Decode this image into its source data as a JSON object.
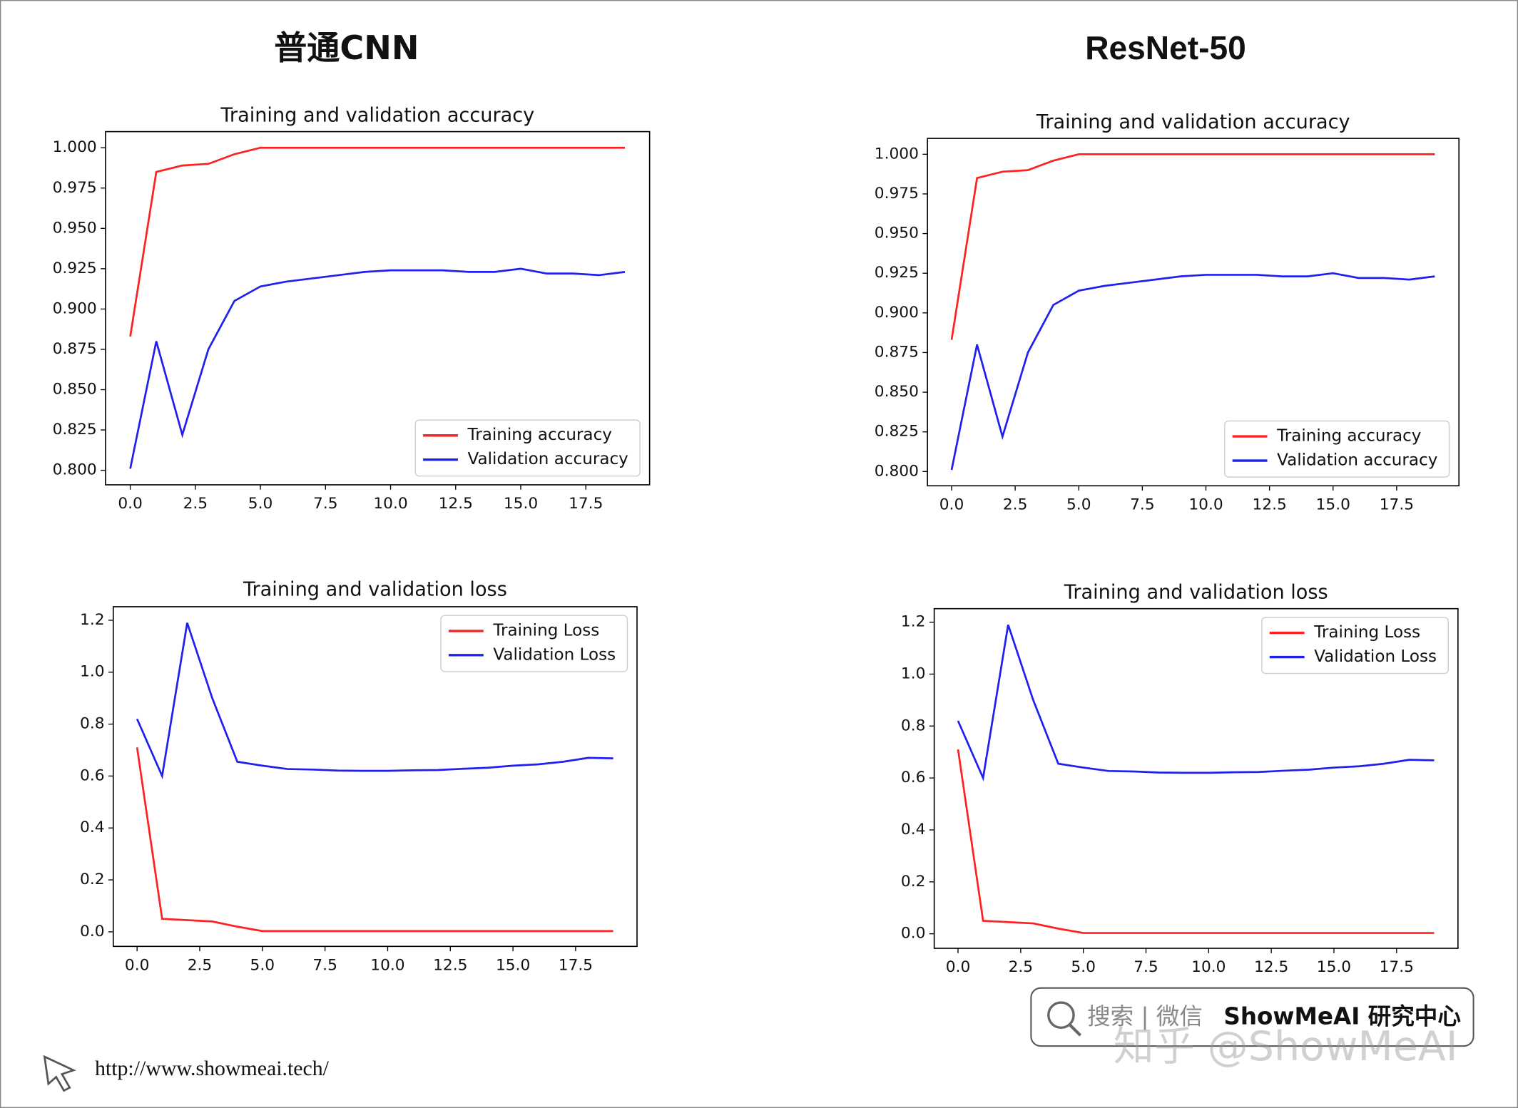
{
  "columns": [
    "普通CNN",
    "ResNet-50"
  ],
  "footer": {
    "url": "http://www.showmeai.tech/",
    "search": "搜索 | 微信",
    "brand": "ShowMeAI 研究中心",
    "watermark": "知乎 @ShowMeAI"
  },
  "chart_data": [
    {
      "type": "line",
      "title": "Training and validation accuracy",
      "x": [
        0,
        1,
        2,
        3,
        4,
        5,
        6,
        7,
        8,
        9,
        10,
        11,
        12,
        13,
        14,
        15,
        16,
        17,
        18,
        19
      ],
      "series": [
        {
          "name": "Training accuracy",
          "color": "#ff2020",
          "values": [
            0.883,
            0.985,
            0.989,
            0.99,
            0.996,
            1.0,
            1.0,
            1.0,
            1.0,
            1.0,
            1.0,
            1.0,
            1.0,
            1.0,
            1.0,
            1.0,
            1.0,
            1.0,
            1.0,
            1.0
          ]
        },
        {
          "name": "Validation accuracy",
          "color": "#2020ee",
          "values": [
            0.801,
            0.88,
            0.822,
            0.875,
            0.905,
            0.914,
            0.917,
            0.919,
            0.921,
            0.923,
            0.924,
            0.924,
            0.924,
            0.923,
            0.923,
            0.925,
            0.922,
            0.922,
            0.921,
            0.923
          ]
        }
      ],
      "xlim": [
        -0.95,
        19.95
      ],
      "ylim": [
        0.791,
        1.01
      ],
      "xticks": [
        {
          "value": 0,
          "label": "0.0"
        },
        2.5,
        {
          "value": 5,
          "label": "5.0"
        },
        7.5,
        {
          "value": 10,
          "label": "10.0"
        },
        12.5,
        {
          "value": 15,
          "label": "15.0"
        },
        17.5
      ],
      "yticks": [
        {
          "value": 0.8,
          "label": "0.800"
        },
        0.825,
        {
          "value": 0.85,
          "label": "0.850"
        },
        0.875,
        {
          "value": 0.9,
          "label": "0.900"
        },
        0.925,
        {
          "value": 0.95,
          "label": "0.950"
        },
        0.975,
        {
          "value": 1,
          "label": "1.000"
        }
      ],
      "legend": "lower right"
    },
    {
      "type": "line",
      "title": "Training and validation loss",
      "x": [
        0,
        1,
        2,
        3,
        4,
        5,
        6,
        7,
        8,
        9,
        10,
        11,
        12,
        13,
        14,
        15,
        16,
        17,
        18,
        19
      ],
      "series": [
        {
          "name": "Training Loss",
          "color": "#ff2020",
          "values": [
            0.71,
            0.05,
            0.045,
            0.04,
            0.02,
            0.003,
            0.003,
            0.003,
            0.003,
            0.003,
            0.003,
            0.003,
            0.003,
            0.003,
            0.003,
            0.003,
            0.003,
            0.003,
            0.003,
            0.003
          ]
        },
        {
          "name": "Validation Loss",
          "color": "#2020ee",
          "values": [
            0.82,
            0.6,
            1.19,
            0.9,
            0.655,
            0.64,
            0.627,
            0.625,
            0.621,
            0.62,
            0.62,
            0.622,
            0.623,
            0.628,
            0.632,
            0.64,
            0.645,
            0.655,
            0.67,
            0.668
          ]
        }
      ],
      "xlim": [
        -0.95,
        19.95
      ],
      "ylim": [
        -0.056,
        1.252
      ],
      "xticks": [
        {
          "value": 0,
          "label": "0.0"
        },
        2.5,
        {
          "value": 5,
          "label": "5.0"
        },
        7.5,
        {
          "value": 10,
          "label": "10.0"
        },
        12.5,
        {
          "value": 15,
          "label": "15.0"
        },
        17.5
      ],
      "yticks": [
        {
          "value": 0,
          "label": "0.0"
        },
        0.2,
        0.4,
        0.6,
        0.8,
        {
          "value": 1,
          "label": "1.0"
        },
        1.2
      ],
      "legend": "upper right"
    },
    {
      "type": "line",
      "title": "Training and validation accuracy",
      "x": [
        0,
        1,
        2,
        3,
        4,
        5,
        6,
        7,
        8,
        9,
        10,
        11,
        12,
        13,
        14,
        15,
        16,
        17,
        18,
        19
      ],
      "series": [
        {
          "name": "Training accuracy",
          "color": "#ff2020",
          "values": [
            0.883,
            0.985,
            0.989,
            0.99,
            0.996,
            1.0,
            1.0,
            1.0,
            1.0,
            1.0,
            1.0,
            1.0,
            1.0,
            1.0,
            1.0,
            1.0,
            1.0,
            1.0,
            1.0,
            1.0
          ]
        },
        {
          "name": "Validation accuracy",
          "color": "#2020ee",
          "values": [
            0.801,
            0.88,
            0.822,
            0.875,
            0.905,
            0.914,
            0.917,
            0.919,
            0.921,
            0.923,
            0.924,
            0.924,
            0.924,
            0.923,
            0.923,
            0.925,
            0.922,
            0.922,
            0.921,
            0.923
          ]
        }
      ],
      "xlim": [
        -0.95,
        19.95
      ],
      "ylim": [
        0.791,
        1.01
      ],
      "xticks": [
        {
          "value": 0,
          "label": "0.0"
        },
        2.5,
        {
          "value": 5,
          "label": "5.0"
        },
        7.5,
        {
          "value": 10,
          "label": "10.0"
        },
        12.5,
        {
          "value": 15,
          "label": "15.0"
        },
        17.5
      ],
      "yticks": [
        {
          "value": 0.8,
          "label": "0.800"
        },
        0.825,
        {
          "value": 0.85,
          "label": "0.850"
        },
        0.875,
        {
          "value": 0.9,
          "label": "0.900"
        },
        0.925,
        {
          "value": 0.95,
          "label": "0.950"
        },
        0.975,
        {
          "value": 1,
          "label": "1.000"
        }
      ],
      "legend": "lower right"
    },
    {
      "type": "line",
      "title": "Training and validation loss",
      "x": [
        0,
        1,
        2,
        3,
        4,
        5,
        6,
        7,
        8,
        9,
        10,
        11,
        12,
        13,
        14,
        15,
        16,
        17,
        18,
        19
      ],
      "series": [
        {
          "name": "Training Loss",
          "color": "#ff2020",
          "values": [
            0.71,
            0.05,
            0.045,
            0.04,
            0.02,
            0.003,
            0.003,
            0.003,
            0.003,
            0.003,
            0.003,
            0.003,
            0.003,
            0.003,
            0.003,
            0.003,
            0.003,
            0.003,
            0.003,
            0.003
          ]
        },
        {
          "name": "Validation Loss",
          "color": "#2020ee",
          "values": [
            0.82,
            0.6,
            1.19,
            0.9,
            0.655,
            0.64,
            0.627,
            0.625,
            0.621,
            0.62,
            0.62,
            0.622,
            0.623,
            0.628,
            0.632,
            0.64,
            0.645,
            0.655,
            0.67,
            0.668
          ]
        }
      ],
      "xlim": [
        -0.95,
        19.95
      ],
      "ylim": [
        -0.056,
        1.252
      ],
      "xticks": [
        {
          "value": 0,
          "label": "0.0"
        },
        2.5,
        {
          "value": 5,
          "label": "5.0"
        },
        7.5,
        {
          "value": 10,
          "label": "10.0"
        },
        12.5,
        {
          "value": 15,
          "label": "15.0"
        },
        17.5
      ],
      "yticks": [
        {
          "value": 0,
          "label": "0.0"
        },
        0.2,
        0.4,
        0.6,
        0.8,
        {
          "value": 1,
          "label": "1.0"
        },
        1.2
      ],
      "legend": "upper right"
    }
  ]
}
